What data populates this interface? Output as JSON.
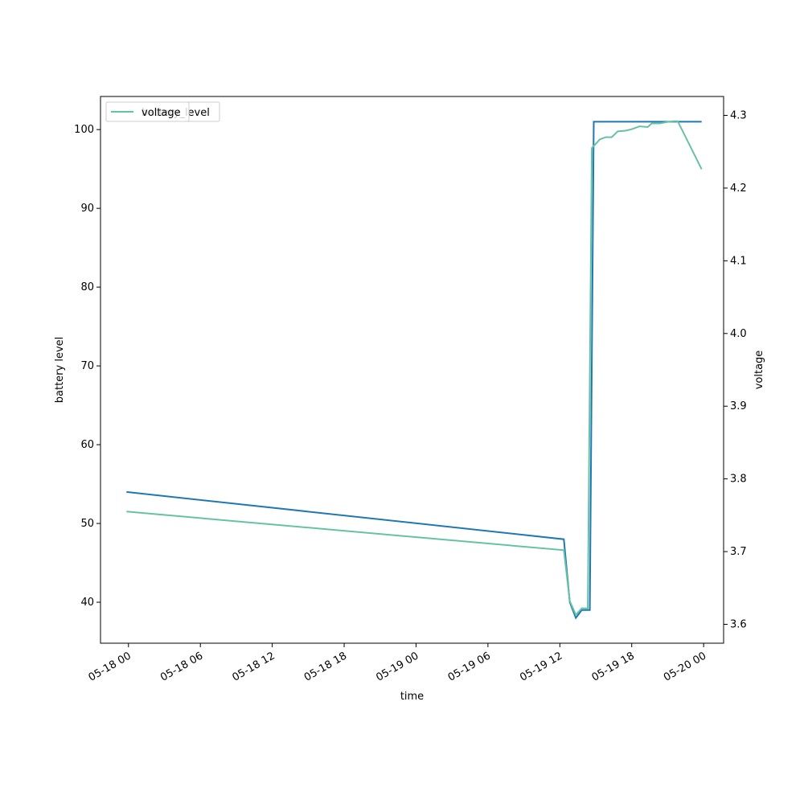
{
  "chart_data": {
    "type": "line",
    "xlabel": "time",
    "ylabel_left": "battery level",
    "ylabel_right": "voltage",
    "x_ticks": [
      "05-18 00",
      "05-18 06",
      "05-18 12",
      "05-18 18",
      "05-19 00",
      "05-19 06",
      "05-19 12",
      "05-19 18",
      "05-20 00"
    ],
    "y_left_ticks": [
      40,
      50,
      60,
      70,
      80,
      90,
      100
    ],
    "y_right_ticks": [
      3.6,
      3.7,
      3.8,
      3.9,
      4.0,
      4.1,
      4.2,
      4.3
    ],
    "ylim_left": [
      34.8,
      104.2
    ],
    "ylim_right": [
      3.574,
      4.326
    ],
    "xlim": [
      "2024-05-17 21:40",
      "2024-05-20 01:40"
    ],
    "legend": {
      "placement": "upper-left",
      "entries": [
        "battery_level",
        "voltage"
      ]
    },
    "colors": {
      "battery_level": "#1f77b4",
      "voltage": "#66c2a5"
    },
    "series": [
      {
        "name": "battery_level",
        "axis": "left",
        "points": [
          [
            "2024-05-17 23:50",
            54
          ],
          [
            "2024-05-19 12:20",
            48
          ],
          [
            "2024-05-19 12:50",
            40
          ],
          [
            "2024-05-19 13:20",
            38
          ],
          [
            "2024-05-19 13:50",
            39
          ],
          [
            "2024-05-19 14:30",
            39
          ],
          [
            "2024-05-19 14:50",
            101
          ],
          [
            "2024-05-19 23:50",
            101
          ]
        ]
      },
      {
        "name": "voltage",
        "axis": "right",
        "points": [
          [
            "2024-05-17 23:50",
            3.755
          ],
          [
            "2024-05-19 12:20",
            3.702
          ],
          [
            "2024-05-19 12:50",
            3.632
          ],
          [
            "2024-05-19 13:20",
            3.613
          ],
          [
            "2024-05-19 13:50",
            3.622
          ],
          [
            "2024-05-19 14:20",
            3.622
          ],
          [
            "2024-05-19 14:40",
            4.255
          ],
          [
            "2024-05-19 15:20",
            4.267
          ],
          [
            "2024-05-19 15:50",
            4.27
          ],
          [
            "2024-05-19 16:20",
            4.27
          ],
          [
            "2024-05-19 16:50",
            4.278
          ],
          [
            "2024-05-19 17:30",
            4.279
          ],
          [
            "2024-05-19 18:00",
            4.281
          ],
          [
            "2024-05-19 18:40",
            4.285
          ],
          [
            "2024-05-19 19:20",
            4.284
          ],
          [
            "2024-05-19 19:40",
            4.289
          ],
          [
            "2024-05-19 20:20",
            4.289
          ],
          [
            "2024-05-19 21:00",
            4.291
          ],
          [
            "2024-05-19 21:30",
            4.292
          ],
          [
            "2024-05-19 21:50",
            4.292
          ],
          [
            "2024-05-19 23:50",
            4.226
          ]
        ]
      }
    ]
  }
}
